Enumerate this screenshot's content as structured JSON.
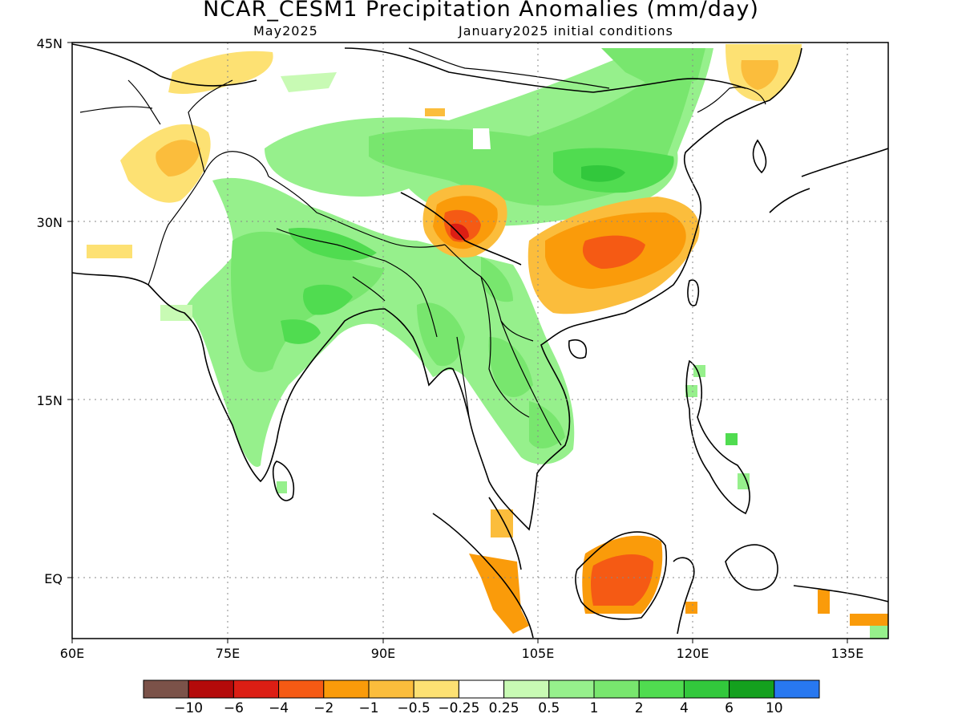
{
  "title": "NCAR_CESM1 Precipitation Anomalies (mm/day)",
  "valid_month": "May2025",
  "init_label": "January2025 initial conditions",
  "map": {
    "lat_labels": [
      "45N",
      "30N",
      "15N",
      "EQ"
    ],
    "lon_labels": [
      "60E",
      "75E",
      "90E",
      "105E",
      "120E",
      "135E"
    ],
    "colorbar": {
      "colors": [
        "#7b5249",
        "#b40a0a",
        "#dc1e14",
        "#f55a14",
        "#fa9b0a",
        "#fbbd3c",
        "#fde173",
        "#ffffff",
        "#c8fab4",
        "#96f08c",
        "#78e66e",
        "#50dc50",
        "#32c83c",
        "#14a01e",
        "#2878f0"
      ],
      "labels": [
        "−10",
        "−6",
        "−4",
        "−2",
        "−1",
        "−0.5",
        "−0.25",
        "0.25",
        "0.5",
        "1",
        "2",
        "4",
        "6",
        "10"
      ]
    }
  }
}
